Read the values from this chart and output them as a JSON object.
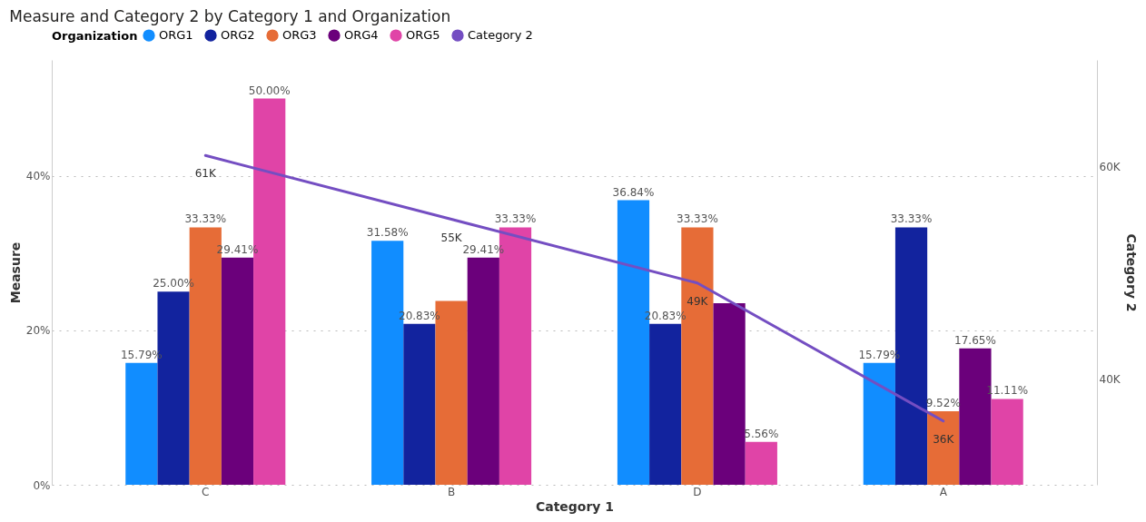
{
  "chart_data": {
    "type": "bar",
    "title": "Measure and Category 2 by Category 1 and Organization",
    "xlabel": "Category 1",
    "ylabel": "Measure",
    "y2label": "Category 2",
    "legend_title": "Organization",
    "legend": "top left",
    "grid": "y",
    "categories": [
      "C",
      "B",
      "D",
      "A"
    ],
    "ylim": [
      0,
      55
    ],
    "yticks": [
      {
        "value": 0,
        "label": "0%"
      },
      {
        "value": 20,
        "label": "20%"
      },
      {
        "value": 40,
        "label": "40%"
      }
    ],
    "y2lim": [
      30000,
      70000
    ],
    "y2ticks": [
      {
        "value": 40000,
        "label": "40K"
      },
      {
        "value": 60000,
        "label": "60K"
      }
    ],
    "series": [
      {
        "name": "ORG1",
        "color": "#118dff",
        "values": [
          15.79,
          31.58,
          36.84,
          15.79
        ],
        "value_labels": [
          "15.79%",
          "31.58%",
          "36.84%",
          "15.79%"
        ]
      },
      {
        "name": "ORG2",
        "color": "#12239e",
        "values": [
          25.0,
          20.83,
          20.83,
          33.33
        ],
        "value_labels": [
          "25.00%",
          "20.83%",
          "20.83%",
          "33.33%"
        ]
      },
      {
        "name": "ORG3",
        "color": "#e66c37",
        "values": [
          33.33,
          23.8,
          33.33,
          9.52
        ],
        "value_labels": [
          "33.33%",
          null,
          "33.33%",
          "9.52%"
        ]
      },
      {
        "name": "ORG4",
        "color": "#6b007b",
        "values": [
          29.41,
          29.41,
          23.5,
          17.65
        ],
        "value_labels": [
          "29.41%",
          "29.41%",
          null,
          "17.65%"
        ]
      },
      {
        "name": "ORG5",
        "color": "#e044a7",
        "values": [
          50.0,
          33.33,
          5.56,
          11.11
        ],
        "value_labels": [
          "50.00%",
          "33.33%",
          "5.56%",
          "11.11%"
        ]
      },
      {
        "name": "Category 2",
        "type": "line",
        "axis": "y2",
        "color": "#744ec2",
        "values": [
          61000,
          55000,
          49000,
          36000
        ],
        "value_labels": [
          "61K",
          "55K",
          "49K",
          "36K"
        ]
      }
    ]
  }
}
